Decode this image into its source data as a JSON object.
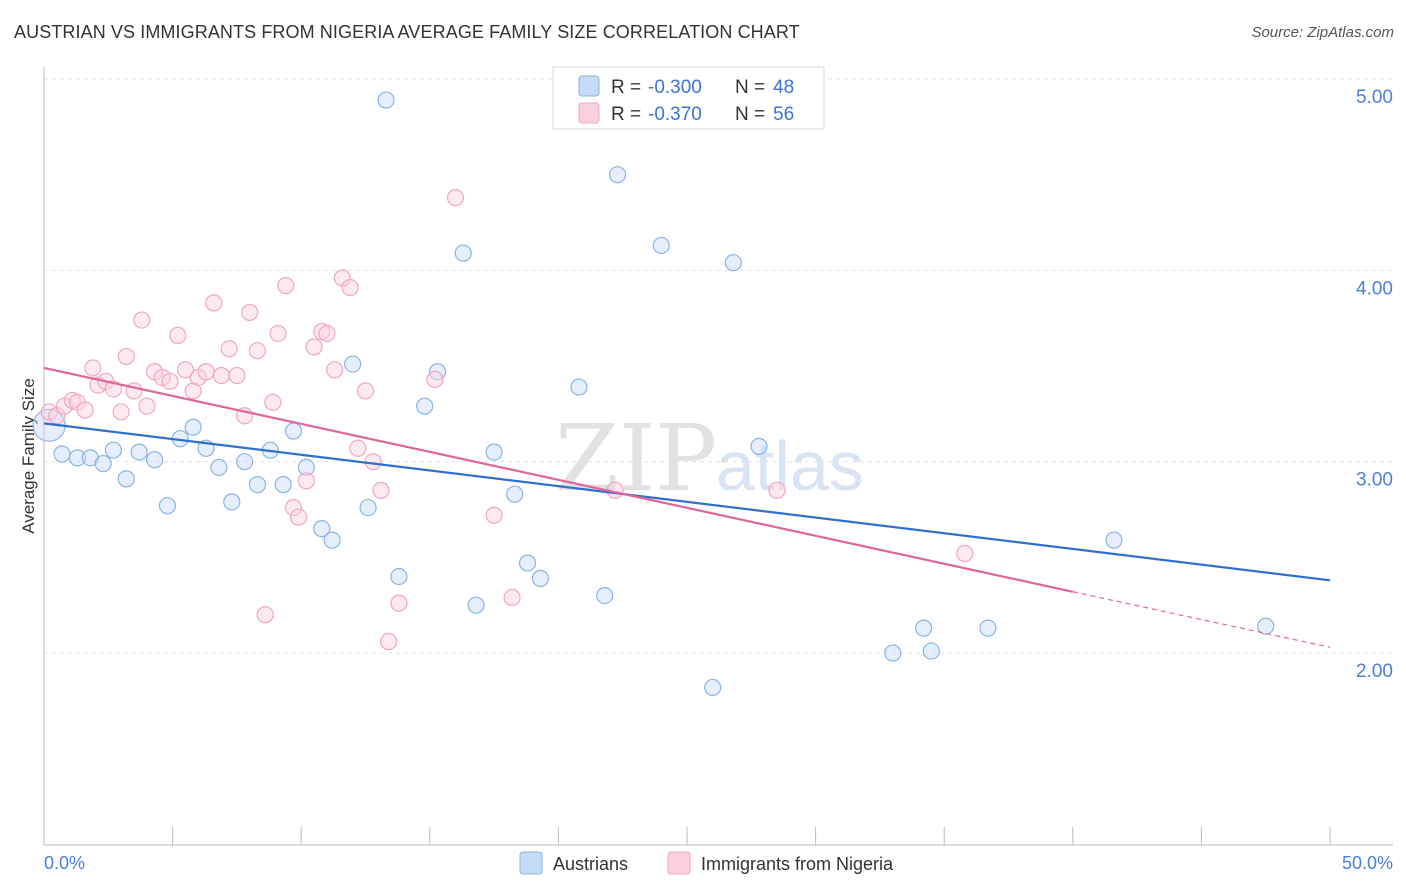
{
  "title": "AUSTRIAN VS IMMIGRANTS FROM NIGERIA AVERAGE FAMILY SIZE CORRELATION CHART",
  "source": "Source: ZipAtlas.com",
  "watermark": {
    "zip": "ZIP",
    "atlas": "atlas"
  },
  "legend": {
    "r_label": "R =",
    "n_label": "N =",
    "rows": [
      {
        "r": "-0.300",
        "n": "48"
      },
      {
        "r": "-0.370",
        "n": "56"
      }
    ]
  },
  "chart_data": {
    "type": "scatter",
    "ylabel": "Average Family Size",
    "xlim": [
      0,
      50
    ],
    "ylim": [
      1.0,
      5.1
    ],
    "x_tick_labels": {
      "min": "0.0%",
      "max": "50.0%"
    },
    "y_ticks": [
      {
        "value": 2.0,
        "label": "2.00"
      },
      {
        "value": 3.0,
        "label": "3.00"
      },
      {
        "value": 4.0,
        "label": "4.00"
      },
      {
        "value": 5.0,
        "label": "5.00"
      }
    ],
    "grid": true,
    "legend_position": "top-center",
    "colors": {
      "austrians": "#8ab4e6",
      "austrians_line": "#2f6fd0",
      "nigeria": "#f2a6bf",
      "nigeria_line": "#e0669a"
    },
    "series": [
      {
        "name": "Austrians",
        "trend": {
          "x0": 0,
          "y0": 3.2,
          "x1": 50,
          "y1": 2.38
        },
        "points": [
          [
            0.2,
            3.19
          ],
          [
            0.7,
            3.04
          ],
          [
            1.3,
            3.02
          ],
          [
            1.8,
            3.02
          ],
          [
            2.3,
            2.99
          ],
          [
            2.7,
            3.06
          ],
          [
            3.2,
            2.91
          ],
          [
            3.7,
            3.05
          ],
          [
            4.3,
            3.01
          ],
          [
            4.8,
            2.77
          ],
          [
            5.3,
            3.12
          ],
          [
            5.8,
            3.18
          ],
          [
            6.3,
            3.07
          ],
          [
            6.8,
            2.97
          ],
          [
            7.3,
            2.79
          ],
          [
            7.8,
            3.0
          ],
          [
            8.3,
            2.88
          ],
          [
            8.8,
            3.06
          ],
          [
            9.3,
            2.88
          ],
          [
            9.7,
            3.16
          ],
          [
            10.2,
            2.97
          ],
          [
            10.8,
            2.65
          ],
          [
            11.2,
            2.59
          ],
          [
            12.0,
            3.51
          ],
          [
            12.6,
            2.76
          ],
          [
            13.3,
            4.89
          ],
          [
            13.8,
            2.4
          ],
          [
            14.8,
            3.29
          ],
          [
            15.3,
            3.47
          ],
          [
            16.3,
            4.09
          ],
          [
            16.8,
            2.25
          ],
          [
            17.5,
            3.05
          ],
          [
            18.3,
            2.83
          ],
          [
            18.8,
            2.47
          ],
          [
            19.3,
            2.39
          ],
          [
            20.8,
            3.39
          ],
          [
            21.8,
            2.3
          ],
          [
            22.3,
            4.5
          ],
          [
            24.0,
            4.13
          ],
          [
            26.0,
            1.82
          ],
          [
            26.8,
            4.04
          ],
          [
            27.8,
            3.08
          ],
          [
            33.0,
            2.0
          ],
          [
            34.2,
            2.13
          ],
          [
            34.5,
            2.01
          ],
          [
            36.7,
            2.13
          ],
          [
            41.6,
            2.59
          ],
          [
            47.5,
            2.14
          ]
        ]
      },
      {
        "name": "Immigrants from Nigeria",
        "trend": {
          "x0": 0,
          "y0": 3.49,
          "x1": 40,
          "y1": 2.32,
          "dash_to_x": 50,
          "dash_to_y": 2.03
        },
        "points": [
          [
            0.2,
            3.26
          ],
          [
            0.5,
            3.24
          ],
          [
            0.8,
            3.29
          ],
          [
            1.1,
            3.32
          ],
          [
            1.3,
            3.31
          ],
          [
            1.6,
            3.27
          ],
          [
            1.9,
            3.49
          ],
          [
            2.1,
            3.4
          ],
          [
            2.4,
            3.42
          ],
          [
            2.7,
            3.38
          ],
          [
            3.0,
            3.26
          ],
          [
            3.2,
            3.55
          ],
          [
            3.5,
            3.37
          ],
          [
            3.8,
            3.74
          ],
          [
            4.0,
            3.29
          ],
          [
            4.3,
            3.47
          ],
          [
            4.6,
            3.44
          ],
          [
            4.9,
            3.42
          ],
          [
            5.2,
            3.66
          ],
          [
            5.5,
            3.48
          ],
          [
            5.8,
            3.37
          ],
          [
            6.0,
            3.44
          ],
          [
            6.3,
            3.47
          ],
          [
            6.6,
            3.83
          ],
          [
            6.9,
            3.45
          ],
          [
            7.2,
            3.59
          ],
          [
            7.5,
            3.45
          ],
          [
            7.8,
            3.24
          ],
          [
            8.0,
            3.78
          ],
          [
            8.3,
            3.58
          ],
          [
            8.6,
            2.2
          ],
          [
            8.9,
            3.31
          ],
          [
            9.1,
            3.67
          ],
          [
            9.4,
            3.92
          ],
          [
            9.7,
            2.76
          ],
          [
            9.9,
            2.71
          ],
          [
            10.2,
            2.9
          ],
          [
            10.5,
            3.6
          ],
          [
            10.8,
            3.68
          ],
          [
            11.0,
            3.67
          ],
          [
            11.3,
            3.48
          ],
          [
            11.6,
            3.96
          ],
          [
            11.9,
            3.91
          ],
          [
            12.2,
            3.07
          ],
          [
            12.5,
            3.37
          ],
          [
            12.8,
            3.0
          ],
          [
            13.1,
            2.85
          ],
          [
            13.4,
            2.06
          ],
          [
            13.8,
            2.26
          ],
          [
            15.2,
            3.43
          ],
          [
            16.0,
            4.38
          ],
          [
            17.5,
            2.72
          ],
          [
            18.2,
            2.29
          ],
          [
            22.2,
            2.85
          ],
          [
            28.5,
            2.85
          ],
          [
            35.8,
            2.52
          ]
        ]
      }
    ]
  },
  "bottom_legend": [
    {
      "label": "Austrians"
    },
    {
      "label": "Immigrants from Nigeria"
    }
  ]
}
